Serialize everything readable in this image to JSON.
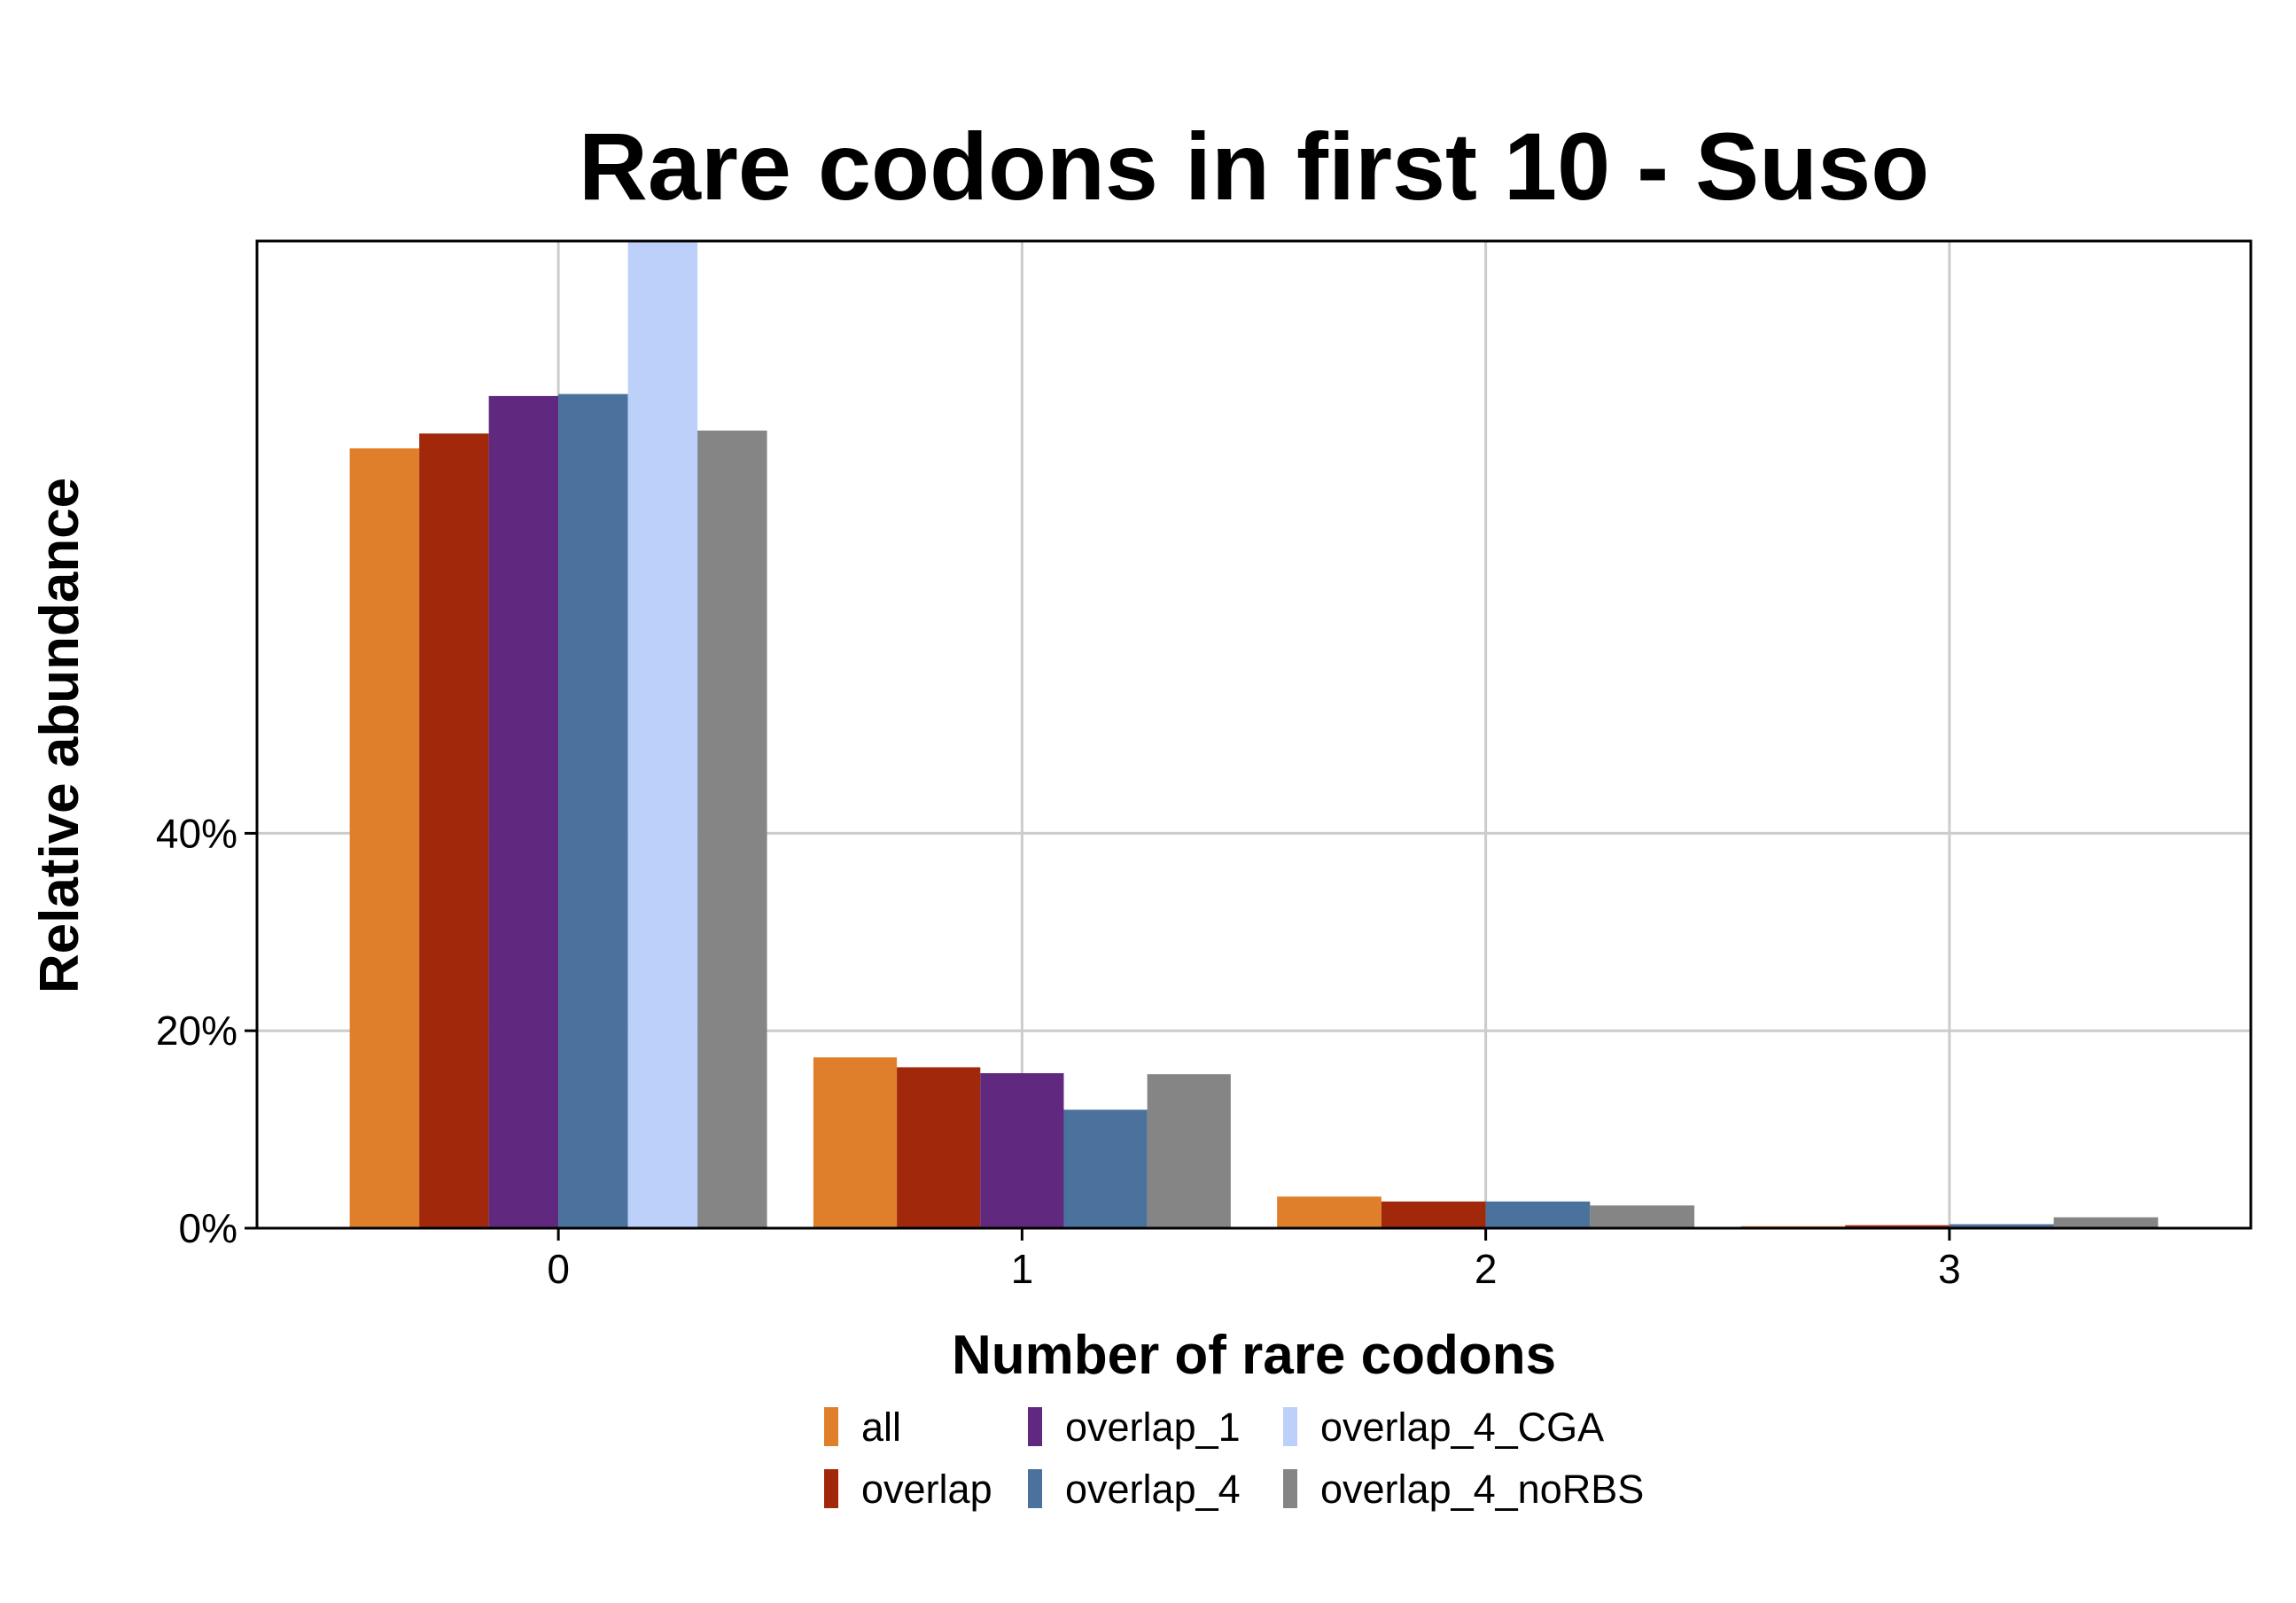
{
  "chart_data": {
    "type": "bar",
    "title": "Rare codons in first 10 - Suso",
    "xlabel": "Number of rare codons",
    "ylabel": "Relative abundance",
    "categories": [
      "0",
      "1",
      "2",
      "3"
    ],
    "yticks": [
      "0%",
      "20%",
      "40%"
    ],
    "ytick_values": [
      0,
      20,
      40
    ],
    "ylim": [
      0,
      100
    ],
    "grid": true,
    "legend_position": "bottom",
    "series": [
      {
        "name": "all",
        "color": "#E07F2B",
        "values": [
          79,
          17.3,
          3.2,
          0.2
        ]
      },
      {
        "name": "overlap",
        "color": "#A1280B",
        "values": [
          80.5,
          16.3,
          2.7,
          0.3
        ]
      },
      {
        "name": "overlap_1",
        "color": "#60287E",
        "values": [
          84.3,
          15.7,
          null,
          null
        ]
      },
      {
        "name": "overlap_4",
        "color": "#4A729C",
        "values": [
          84.5,
          12.0,
          2.7,
          0.4
        ]
      },
      {
        "name": "overlap_4_CGA",
        "color": "#BDD0FA",
        "values": [
          100,
          null,
          null,
          null
        ]
      },
      {
        "name": "overlap_4_noRBS",
        "color": "#858585",
        "values": [
          80.8,
          15.6,
          2.3,
          1.1
        ]
      }
    ]
  }
}
